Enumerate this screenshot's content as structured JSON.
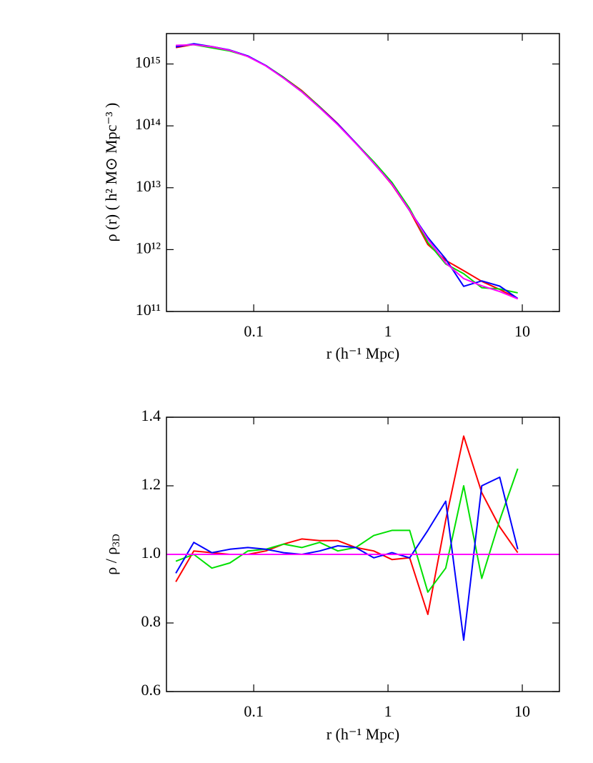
{
  "chart_data": [
    {
      "type": "line",
      "xlabel": "r (h⁻¹ Mpc)",
      "ylabel": "ρ (r)  ( h² M⊙ Mpc⁻³ )",
      "xlog": true,
      "ylog": true,
      "xlim": [
        0.0224,
        18.9
      ],
      "ylim": [
        100000000000.0,
        3100000000000000.0
      ],
      "xticks": [
        0.1,
        1,
        10
      ],
      "yticks": [
        {
          "value": 100000000000.0,
          "label": "10¹¹"
        },
        {
          "value": 1000000000000.0,
          "label": "10¹²"
        },
        {
          "value": 10000000000000.0,
          "label": "10¹³"
        },
        {
          "value": 100000000000000.0,
          "label": "10¹⁴"
        },
        {
          "value": 1000000000000000.0,
          "label": "10¹⁵"
        }
      ],
      "x": [
        0.0263,
        0.0358,
        0.0488,
        0.0664,
        0.0904,
        0.123,
        0.167,
        0.228,
        0.31,
        0.423,
        0.575,
        0.783,
        1.07,
        1.45,
        1.98,
        2.69,
        3.66,
        4.99,
        6.79,
        9.25
      ],
      "series": [
        {
          "color": "#ff0000",
          "values": [
            1840000000000000.0,
            2070000000000000.0,
            1910000000000000.0,
            1660000000000000.0,
            1320000000000000.0,
            940000000000000.0,
            608000000000000.0,
            371000000000000.0,
            204000000000000.0,
            108000000000000.0,
            53000000000000.0,
            25300000000000.0,
            11200000000000.0,
            4260000000000.0,
            1210000000000.0,
            670000000000.0,
            457000000000.0,
            307000000000.0,
            227000000000.0,
            161000000000.0
          ]
        },
        {
          "color": "#00e000",
          "values": [
            1960000000000000.0,
            2050000000000000.0,
            1820000000000000.0,
            1620000000000000.0,
            1330000000000000.0,
            944000000000000.0,
            608000000000000.0,
            362000000000000.0,
            203000000000000.0,
            105000000000000.0,
            53000000000000.0,
            26400000000000.0,
            12200000000000.0,
            4600000000000.0,
            1310000000000.0,
            586000000000.0,
            408000000000.0,
            242000000000.0,
            231000000000.0,
            200000000000.0
          ]
        },
        {
          "color": "#0000ff",
          "values": [
            1890000000000000.0,
            2120000000000000.0,
            1910000000000000.0,
            1680000000000000.0,
            1350000000000000.0,
            944000000000000.0,
            593000000000000.0,
            355000000000000.0,
            198000000000000.0,
            107000000000000.0,
            53000000000000.0,
            24800000000000.0,
            11500000000000.0,
            4260000000000.0,
            1570000000000.0,
            705000000000.0,
            255000000000.0,
            312000000000.0,
            257000000000.0,
            162000000000.0
          ]
        },
        {
          "color": "#ff00ff",
          "values": [
            2000000000000000.0,
            2050000000000000.0,
            1900000000000000.0,
            1660000000000000.0,
            1320000000000000.0,
            930000000000000.0,
            590000000000000.0,
            355000000000000.0,
            196000000000000.0,
            104000000000000.0,
            52000000000000.0,
            25000000000000.0,
            11400000000000.0,
            4300000000000.0,
            1470000000000.0,
            610000000000.0,
            340000000000.0,
            260000000000.0,
            210000000000.0,
            160000000000.0
          ]
        }
      ]
    },
    {
      "type": "line",
      "xlabel": "r (h⁻¹ Mpc)",
      "ylabel": "ρ / ρ",
      "ylabel_sub": "3D",
      "xlog": true,
      "ylog": false,
      "xlim": [
        0.0224,
        18.9
      ],
      "ylim": [
        0.6,
        1.4
      ],
      "xticks": [
        0.1,
        1,
        10
      ],
      "yticks": [
        0.6,
        0.8,
        {
          "value": 1,
          "label": "1.0"
        },
        1.2,
        1.4
      ],
      "x": [
        0.0263,
        0.0358,
        0.0488,
        0.0664,
        0.0904,
        0.123,
        0.167,
        0.228,
        0.31,
        0.423,
        0.575,
        0.783,
        1.07,
        1.45,
        1.98,
        2.69,
        3.66,
        4.99,
        6.79,
        9.25
      ],
      "reference_line": {
        "value": 1,
        "color": "#ff00ff"
      },
      "series": [
        {
          "color": "#ff0000",
          "values": [
            0.92,
            1.01,
            1.005,
            1.0,
            1.0,
            1.01,
            1.03,
            1.045,
            1.04,
            1.04,
            1.02,
            1.01,
            0.985,
            0.99,
            0.825,
            1.1,
            1.345,
            1.18,
            1.08,
            1.005
          ]
        },
        {
          "color": "#00e000",
          "values": [
            0.98,
            1.0,
            0.96,
            0.975,
            1.01,
            1.015,
            1.03,
            1.02,
            1.035,
            1.01,
            1.02,
            1.055,
            1.07,
            1.07,
            0.89,
            0.96,
            1.2,
            0.93,
            1.1,
            1.25
          ]
        },
        {
          "color": "#0000ff",
          "values": [
            0.945,
            1.035,
            1.005,
            1.015,
            1.02,
            1.015,
            1.005,
            1.0,
            1.01,
            1.025,
            1.02,
            0.99,
            1.005,
            0.99,
            1.07,
            1.155,
            0.75,
            1.2,
            1.225,
            1.015
          ]
        }
      ]
    }
  ]
}
